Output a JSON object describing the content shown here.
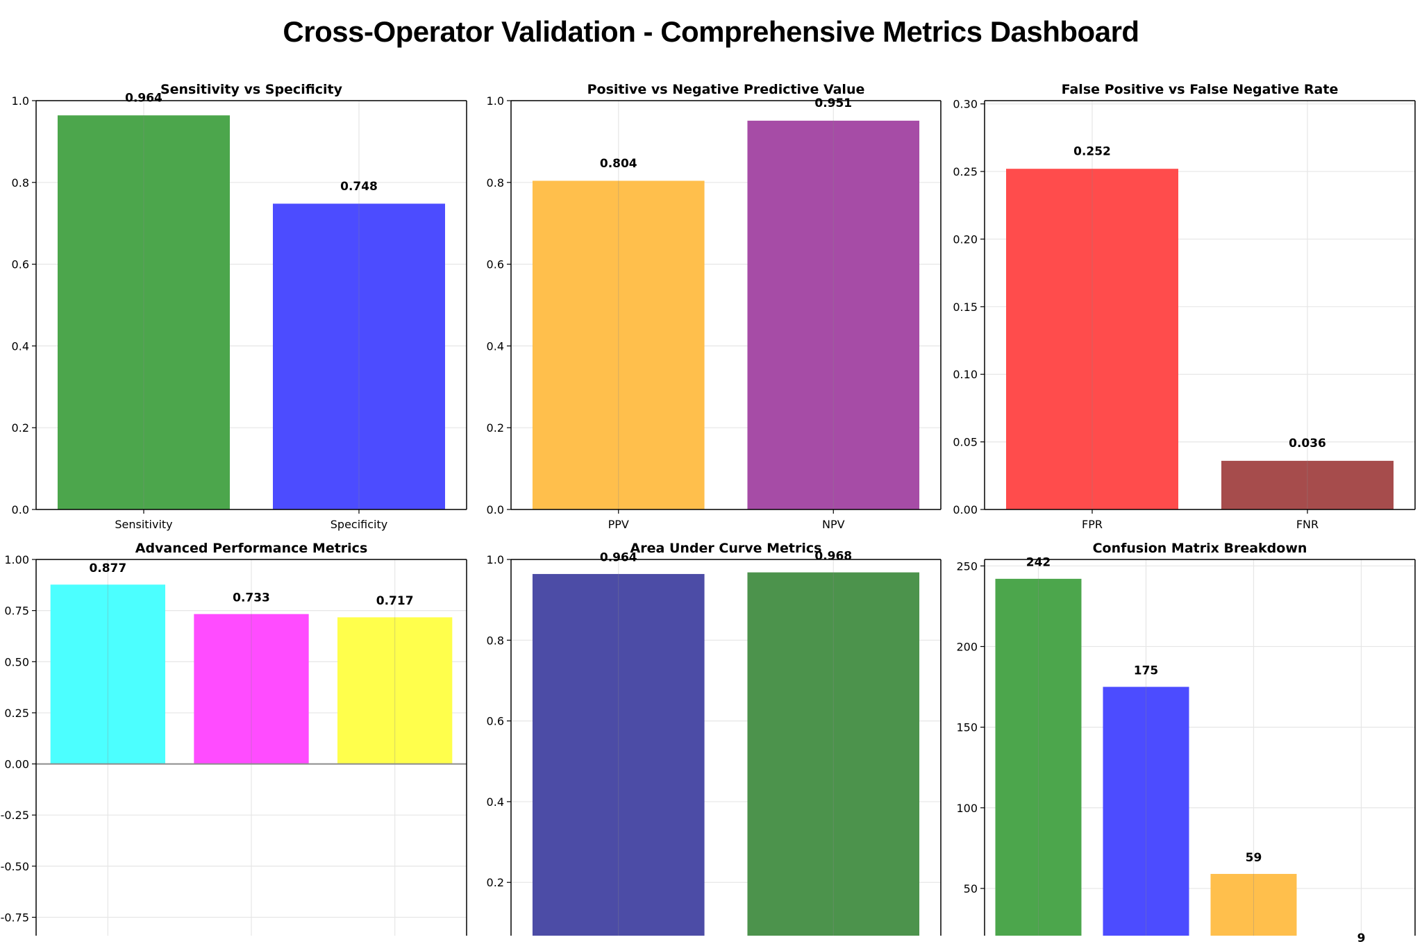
{
  "suptitle": "Cross-Operator Validation - Comprehensive Metrics Dashboard",
  "chart_data": [
    {
      "type": "bar",
      "title": "Sensitivity vs Specificity",
      "categories": [
        "Sensitivity",
        "Specificity"
      ],
      "values": [
        0.964,
        0.748
      ],
      "labels": [
        "0.964",
        "0.748"
      ],
      "colors": [
        "#4ca64c",
        "#4c4cff"
      ],
      "ylim": [
        0,
        1.0
      ],
      "yticks": [
        0.0,
        0.2,
        0.4,
        0.6,
        0.8,
        1.0
      ],
      "ytick_labels": [
        "0.0",
        "0.2",
        "0.4",
        "0.6",
        "0.8",
        "1.0"
      ],
      "grid": true
    },
    {
      "type": "bar",
      "title": "Positive vs Negative Predictive Value",
      "categories": [
        "PPV",
        "NPV"
      ],
      "values": [
        0.804,
        0.951
      ],
      "labels": [
        "0.804",
        "0.951"
      ],
      "colors": [
        "#ffbf4c",
        "#a64ca6"
      ],
      "ylim": [
        0,
        1.0
      ],
      "yticks": [
        0.0,
        0.2,
        0.4,
        0.6,
        0.8,
        1.0
      ],
      "ytick_labels": [
        "0.0",
        "0.2",
        "0.4",
        "0.6",
        "0.8",
        "1.0"
      ],
      "grid": true
    },
    {
      "type": "bar",
      "title": "False Positive vs False Negative Rate",
      "categories": [
        "FPR",
        "FNR"
      ],
      "values": [
        0.252,
        0.036
      ],
      "labels": [
        "0.252",
        "0.036"
      ],
      "colors": [
        "#ff4c4c",
        "#a64c4c"
      ],
      "ylim": [
        0,
        0.3024
      ],
      "yticks": [
        0.0,
        0.05,
        0.1,
        0.15,
        0.2,
        0.25,
        0.3
      ],
      "ytick_labels": [
        "0.00",
        "0.05",
        "0.10",
        "0.15",
        "0.20",
        "0.25",
        "0.30"
      ],
      "grid": true
    },
    {
      "type": "bar",
      "title": "Advanced Performance Metrics",
      "categories": [
        "",
        "",
        ""
      ],
      "values": [
        0.877,
        0.733,
        0.717
      ],
      "labels": [
        "0.877",
        "0.733",
        "0.717"
      ],
      "colors": [
        "#4cffff",
        "#ff4cff",
        "#ffff4c"
      ],
      "ylim": [
        -0.84,
        1.0
      ],
      "yticks": [
        -0.75,
        -0.5,
        -0.25,
        0.0,
        0.25,
        0.5,
        0.75,
        1.0
      ],
      "ytick_labels": [
        "-0.75",
        "-0.50",
        "-0.25",
        "0.00",
        "0.25",
        "0.50",
        "0.75",
        "1.00"
      ],
      "zero_line": true,
      "grid": true
    },
    {
      "type": "bar",
      "title": "Area Under Curve Metrics",
      "categories": [
        "",
        ""
      ],
      "values": [
        0.964,
        0.968
      ],
      "labels": [
        "0.964",
        "0.968"
      ],
      "colors": [
        "#4c4ca6",
        "#4c934c"
      ],
      "ylim": [
        0.068,
        1.0
      ],
      "yticks": [
        0.2,
        0.4,
        0.6,
        0.8,
        1.0
      ],
      "ytick_labels": [
        "0.2",
        "0.4",
        "0.6",
        "0.8",
        "1.0"
      ],
      "grid": true
    },
    {
      "type": "bar",
      "title": "Confusion Matrix Breakdown",
      "categories": [
        "",
        "",
        "",
        ""
      ],
      "values": [
        242,
        175,
        59,
        9
      ],
      "labels": [
        "242",
        "175",
        "59",
        "9"
      ],
      "colors": [
        "#4ca64c",
        "#4c4cff",
        "#ffbf4c",
        "#ff4c4c"
      ],
      "ylim": [
        20.7,
        254
      ],
      "yticks": [
        50,
        100,
        150,
        200,
        250
      ],
      "ytick_labels": [
        "50",
        "100",
        "150",
        "200",
        "250"
      ],
      "grid": true
    }
  ]
}
